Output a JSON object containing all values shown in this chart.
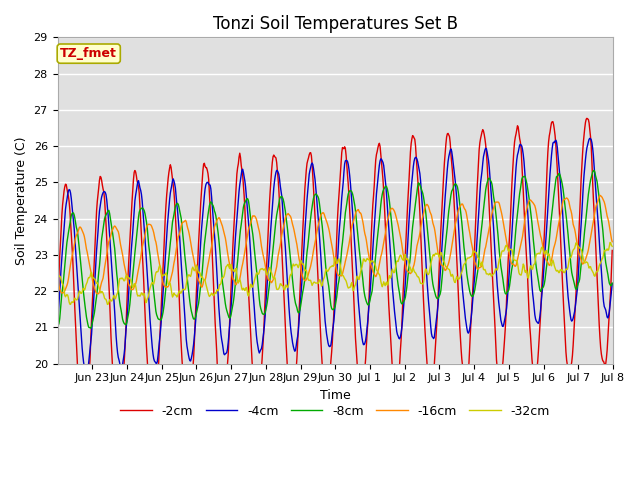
{
  "title": "Tonzi Soil Temperatures Set B",
  "xlabel": "Time",
  "ylabel": "Soil Temperature (C)",
  "ylim": [
    20.0,
    29.0
  ],
  "yticks": [
    20.0,
    21.0,
    22.0,
    23.0,
    24.0,
    25.0,
    26.0,
    27.0,
    28.0,
    29.0
  ],
  "annotation_label": "TZ_fmet",
  "annotation_color": "#cc0000",
  "annotation_bg": "#ffffcc",
  "annotation_border": "#aaaa00",
  "line_colors": {
    "-2cm": "#dd0000",
    "-4cm": "#0000cc",
    "-8cm": "#00aa00",
    "-16cm": "#ff8800",
    "-32cm": "#cccc00"
  },
  "legend_labels": [
    "-2cm",
    "-4cm",
    "-8cm",
    "-16cm",
    "-32cm"
  ],
  "figure_bg": "#ffffff",
  "plot_bg": "#e0e0e0",
  "grid_color": "#ffffff",
  "title_fontsize": 12,
  "axis_fontsize": 9,
  "tick_fontsize": 8,
  "depths": {
    "-2cm": {
      "base": 21.5,
      "amp": 3.5,
      "phase": 0.0,
      "trend": 0.12,
      "noise": 0.15
    },
    "-4cm": {
      "base": 22.2,
      "amp": 2.5,
      "phase": 0.5,
      "trend": 0.1,
      "noise": 0.1
    },
    "-8cm": {
      "base": 22.5,
      "amp": 1.6,
      "phase": 1.2,
      "trend": 0.08,
      "noise": 0.08
    },
    "-16cm": {
      "base": 22.8,
      "amp": 0.9,
      "phase": 2.5,
      "trend": 0.06,
      "noise": 0.06
    },
    "-32cm": {
      "base": 22.0,
      "amp": 0.35,
      "phase": 4.5,
      "trend": 0.06,
      "noise": 0.15
    }
  }
}
